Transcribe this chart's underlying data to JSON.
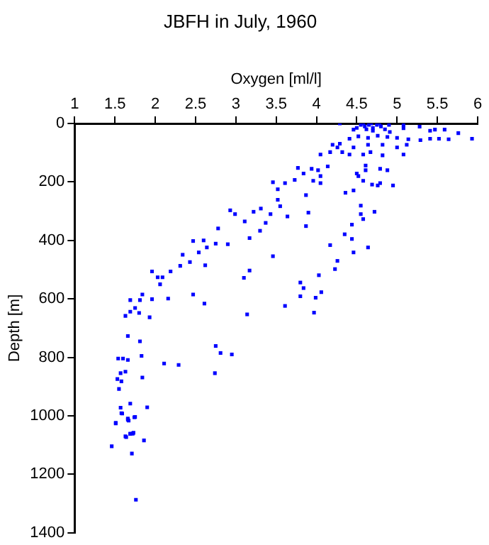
{
  "chart_data": {
    "type": "scatter",
    "title": "JBFH in July, 1960",
    "xlabel": "Oxygen [ml/l]",
    "ylabel": "Depth [m]",
    "xlim": [
      1,
      6
    ],
    "xticks": [
      1,
      1.5,
      2,
      2.5,
      3,
      3.5,
      4,
      4.5,
      5,
      5.5,
      6
    ],
    "ylim": [
      1400,
      0
    ],
    "yticks": [
      0,
      200,
      400,
      600,
      800,
      1000,
      1200,
      1400
    ],
    "grid": false,
    "legend": false,
    "marker": "square",
    "color": "#0000ff",
    "x": [
      4.29,
      4.55,
      4.6,
      4.65,
      4.7,
      4.75,
      4.8,
      4.85,
      4.62,
      4.7,
      4.5,
      4.58,
      4.68,
      4.78,
      4.9,
      4.46,
      4.91,
      5.08,
      5.08,
      5.28,
      5.41,
      5.47,
      5.59,
      5.76,
      5.93,
      5.64,
      5.52,
      5.41,
      5.29,
      5.14,
      5,
      4.88,
      4.76,
      4.64,
      4.52,
      4.41,
      4.29,
      4.2,
      4.26,
      4.32,
      4.41,
      4.46,
      4.64,
      4.67,
      4.82,
      5,
      5.12,
      5.08,
      4.82,
      4.58,
      4.05,
      4.17,
      4.14,
      4.02,
      3.94,
      3.77,
      3.84,
      4.05,
      4.05,
      3.96,
      3.87,
      3.73,
      3.61,
      3.46,
      3.52,
      3.52,
      3.55,
      3.43,
      3.37,
      3.31,
      3.22,
      3.11,
      3.17,
      3.3,
      2.99,
      2.93,
      2.78,
      2.9,
      2.75,
      2.6,
      2.47,
      2.34,
      2.54,
      2.43,
      2.62,
      2.31,
      2.64,
      3.46,
      3.64,
      3.9,
      3.87,
      4.17,
      4.26,
      4.35,
      4.44,
      4.46,
      4.55,
      4.58,
      4.55,
      4.72,
      4.64,
      4.44,
      4.36,
      4.46,
      4.52,
      4.5,
      4.61,
      4.58,
      4.69,
      4.76,
      4.79,
      4.61,
      4.79,
      4.88,
      4.95,
      1.96,
      2.03,
      2.09,
      2.06,
      2.19,
      1.69,
      1.63,
      1.69,
      1.75,
      1.81,
      1.84,
      1.96,
      1.8,
      1.93,
      2.16,
      2.47,
      2.61,
      3.1,
      3.17,
      3.14,
      3.61,
      3.8,
      3.84,
      3.8,
      3.99,
      3.97,
      4.03,
      4.06,
      4.23,
      1.66,
      1.81,
      1.83,
      1.54,
      1.6,
      1.66,
      1.57,
      1.63,
      1.53,
      1.58,
      1.84,
      1.55,
      2.11,
      2.29,
      2.75,
      2.81,
      2.95,
      2.74,
      1.57,
      1.59,
      1.69,
      1.9,
      1.66,
      1.51,
      1.74,
      1.69,
      1.63,
      1.72,
      1.58,
      1.66,
      1.75,
      1.51,
      1.67,
      1.69,
      1.73,
      1.64,
      1.86,
      1.46,
      1.71,
      1.76
    ],
    "values": [
      0,
      5,
      10,
      5,
      15,
      5,
      10,
      20,
      20,
      25,
      15,
      0,
      0,
      0,
      5,
      21,
      29,
      5,
      16,
      11,
      25,
      21,
      21,
      33,
      52,
      54,
      52,
      52,
      57,
      54,
      49,
      46,
      42,
      49,
      44,
      52,
      69,
      73,
      82,
      98,
      106,
      82,
      73,
      98,
      73,
      82,
      73,
      106,
      109,
      106,
      106,
      98,
      147,
      160,
      155,
      152,
      171,
      180,
      204,
      196,
      245,
      193,
      204,
      201,
      225,
      261,
      283,
      310,
      340,
      291,
      302,
      335,
      392,
      367,
      310,
      297,
      359,
      413,
      411,
      400,
      402,
      449,
      441,
      474,
      485,
      487,
      424,
      454,
      318,
      305,
      351,
      416,
      470,
      379,
      395,
      441,
      310,
      327,
      281,
      302,
      424,
      346,
      237,
      229,
      180,
      171,
      160,
      196,
      209,
      212,
      204,
      144,
      155,
      160,
      212,
      506,
      526,
      526,
      550,
      506,
      604,
      658,
      644,
      631,
      604,
      585,
      601,
      648,
      663,
      599,
      585,
      616,
      528,
      503,
      653,
      624,
      544,
      563,
      591,
      596,
      647,
      519,
      577,
      498,
      727,
      745,
      795,
      804,
      804,
      809,
      854,
      849,
      874,
      882,
      869,
      908,
      821,
      826,
      761,
      785,
      790,
      854,
      972,
      992,
      958,
      971,
      1013,
      1024,
      1005,
      1061,
      1070,
      1061,
      991,
      1009,
      1004,
      1026,
      1016,
      1062,
      1058,
      1073,
      1084,
      1104,
      1129,
      1287
    ]
  }
}
